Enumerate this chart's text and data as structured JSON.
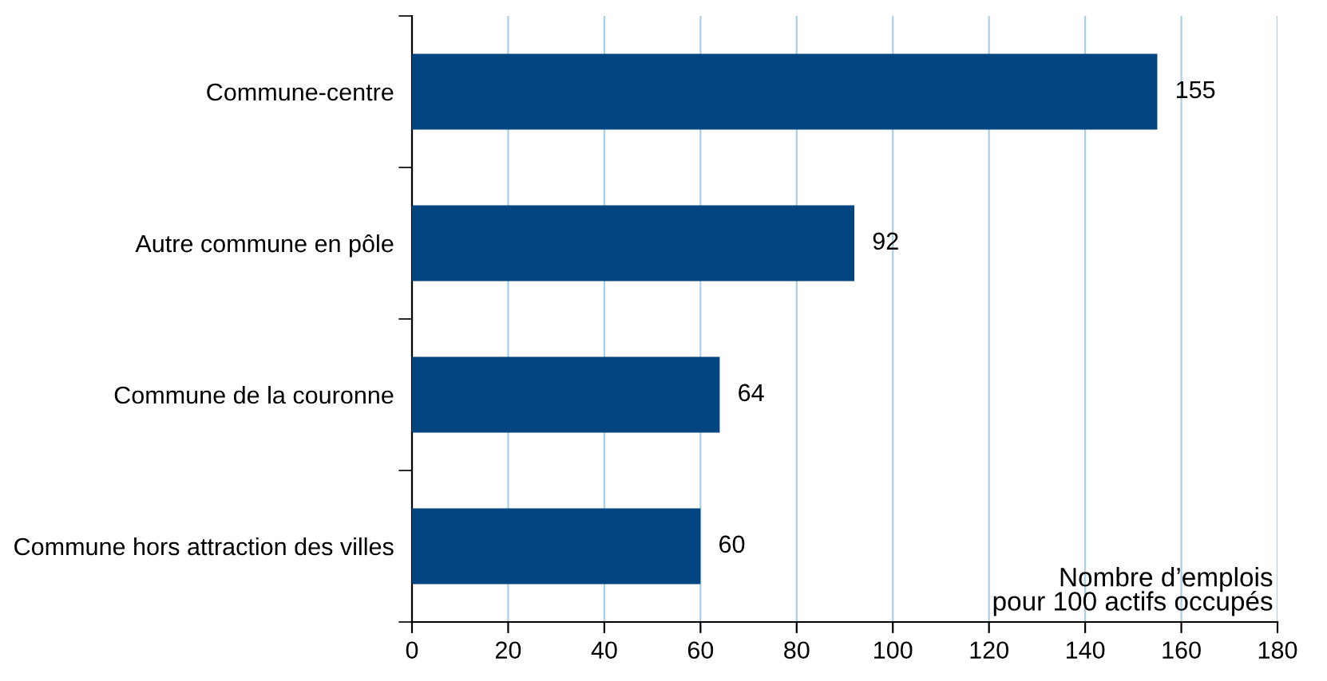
{
  "chart_data": {
    "type": "bar",
    "orientation": "horizontal",
    "categories": [
      "Commune-centre",
      "Autre commune en pôle",
      "Commune de la couronne",
      "Commune hors attraction des villes"
    ],
    "values": [
      155,
      92,
      64,
      60
    ],
    "color": "#00457f",
    "xlim": [
      0,
      180
    ],
    "xticks": [
      0,
      20,
      40,
      60,
      80,
      100,
      120,
      140,
      160,
      180
    ],
    "grid": "x",
    "data_labels": true,
    "annotations": [
      "Nombre d’emplois\npour 100 actifs occupés"
    ]
  }
}
